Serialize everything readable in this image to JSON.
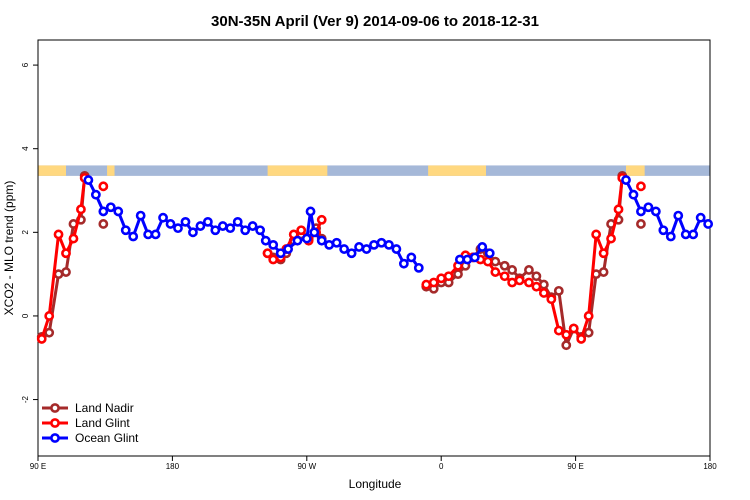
{
  "chart_data": {
    "type": "line",
    "title": "30N-35N April (Ver 9)   2014-09-06 to 2018-12-31",
    "xlabel": "Longitude",
    "ylabel": "XCO2 - MLO trend (ppm)",
    "xlim": [
      0,
      360
    ],
    "ylim": [
      -3.35,
      6.6
    ],
    "x_ticks": [
      {
        "value": 0,
        "label": "90 E"
      },
      {
        "value": 72,
        "label": "180"
      },
      {
        "value": 144,
        "label": "90 W"
      },
      {
        "value": 216,
        "label": "0"
      },
      {
        "value": 288,
        "label": "90 E"
      },
      {
        "value": 360,
        "label": "180"
      }
    ],
    "y_ticks": [
      {
        "value": -2,
        "label": "-2"
      },
      {
        "value": 0,
        "label": "0"
      },
      {
        "value": 2,
        "label": "2"
      },
      {
        "value": 4,
        "label": "4"
      },
      {
        "value": 6,
        "label": "6"
      }
    ],
    "grid": false,
    "legend_position": "bottom-left",
    "band": {
      "y_range": [
        3.35,
        3.6
      ],
      "land_color": "#ffd880",
      "ocean_color": "#a5b8d8",
      "land_spans": [
        [
          0,
          15
        ],
        [
          37,
          41
        ],
        [
          123,
          155
        ],
        [
          209,
          240
        ],
        [
          315,
          325
        ]
      ]
    },
    "series": [
      {
        "name": "Land Nadir",
        "color": "#a52a2a",
        "points": [
          [
            2,
            -0.5
          ],
          [
            6,
            -0.4
          ],
          [
            11,
            1.0
          ],
          [
            15,
            1.05
          ],
          [
            19,
            2.2
          ],
          [
            23,
            2.3
          ],
          [
            25,
            3.35
          ],
          [
            35,
            2.2
          ],
          [
            123,
            1.5
          ],
          [
            126,
            1.4
          ],
          [
            130,
            1.35
          ],
          [
            133,
            1.5
          ],
          [
            137,
            1.8
          ],
          [
            141,
            1.95
          ],
          [
            145,
            1.85
          ],
          [
            149,
            2.1
          ],
          [
            152,
            1.85
          ],
          [
            208,
            0.7
          ],
          [
            212,
            0.65
          ],
          [
            216,
            0.8
          ],
          [
            220,
            0.8
          ],
          [
            225,
            1.0
          ],
          [
            229,
            1.2
          ],
          [
            233,
            1.4
          ],
          [
            237,
            1.6
          ],
          [
            241,
            1.5
          ],
          [
            245,
            1.3
          ],
          [
            250,
            1.2
          ],
          [
            254,
            1.1
          ],
          [
            258,
            0.9
          ],
          [
            263,
            1.1
          ],
          [
            267,
            0.95
          ],
          [
            271,
            0.75
          ],
          [
            275,
            0.45
          ],
          [
            279,
            0.6
          ],
          [
            283,
            -0.7
          ],
          [
            287,
            -0.3
          ],
          [
            291,
            -0.5
          ],
          [
            295,
            -0.4
          ],
          [
            299,
            1.0
          ],
          [
            303,
            1.05
          ],
          [
            307,
            2.2
          ],
          [
            311,
            2.3
          ],
          [
            313,
            3.35
          ],
          [
            323,
            2.2
          ]
        ]
      },
      {
        "name": "Land Glint",
        "color": "#ff0000",
        "points": [
          [
            2,
            -0.55
          ],
          [
            6,
            0.0
          ],
          [
            11,
            1.95
          ],
          [
            15,
            1.5
          ],
          [
            19,
            1.85
          ],
          [
            23,
            2.55
          ],
          [
            25,
            3.3
          ],
          [
            35,
            3.1
          ],
          [
            123,
            1.5
          ],
          [
            126,
            1.35
          ],
          [
            130,
            1.4
          ],
          [
            133,
            1.6
          ],
          [
            137,
            1.95
          ],
          [
            141,
            2.05
          ],
          [
            145,
            1.8
          ],
          [
            149,
            2.0
          ],
          [
            152,
            2.3
          ],
          [
            208,
            0.75
          ],
          [
            212,
            0.8
          ],
          [
            216,
            0.9
          ],
          [
            220,
            0.95
          ],
          [
            225,
            1.2
          ],
          [
            229,
            1.45
          ],
          [
            233,
            1.4
          ],
          [
            237,
            1.35
          ],
          [
            241,
            1.3
          ],
          [
            245,
            1.05
          ],
          [
            250,
            0.95
          ],
          [
            254,
            0.8
          ],
          [
            258,
            0.85
          ],
          [
            263,
            0.8
          ],
          [
            267,
            0.7
          ],
          [
            271,
            0.55
          ],
          [
            275,
            0.4
          ],
          [
            279,
            -0.35
          ],
          [
            283,
            -0.45
          ],
          [
            287,
            -0.3
          ],
          [
            291,
            -0.55
          ],
          [
            295,
            0.0
          ],
          [
            299,
            1.95
          ],
          [
            303,
            1.5
          ],
          [
            307,
            1.85
          ],
          [
            311,
            2.55
          ],
          [
            313,
            3.3
          ],
          [
            323,
            3.1
          ]
        ]
      },
      {
        "name": "Ocean Glint",
        "color": "#0000ff",
        "points": [
          [
            27,
            3.25
          ],
          [
            31,
            2.9
          ],
          [
            35,
            2.5
          ],
          [
            39,
            2.6
          ],
          [
            43,
            2.5
          ],
          [
            47,
            2.05
          ],
          [
            51,
            1.9
          ],
          [
            55,
            2.4
          ],
          [
            59,
            1.95
          ],
          [
            63,
            1.95
          ],
          [
            67,
            2.35
          ],
          [
            71,
            2.2
          ],
          [
            75,
            2.1
          ],
          [
            79,
            2.25
          ],
          [
            83,
            2.0
          ],
          [
            87,
            2.15
          ],
          [
            91,
            2.25
          ],
          [
            95,
            2.05
          ],
          [
            99,
            2.15
          ],
          [
            103,
            2.1
          ],
          [
            107,
            2.25
          ],
          [
            111,
            2.05
          ],
          [
            115,
            2.15
          ],
          [
            119,
            2.05
          ],
          [
            122,
            1.8
          ],
          [
            126,
            1.7
          ],
          [
            130,
            1.5
          ],
          [
            134,
            1.6
          ],
          [
            139,
            1.8
          ],
          [
            144,
            1.85
          ],
          [
            146,
            2.5
          ],
          [
            148,
            2.0
          ],
          [
            152,
            1.8
          ],
          [
            156,
            1.7
          ],
          [
            160,
            1.75
          ],
          [
            164,
            1.6
          ],
          [
            168,
            1.5
          ],
          [
            172,
            1.65
          ],
          [
            176,
            1.6
          ],
          [
            180,
            1.7
          ],
          [
            184,
            1.75
          ],
          [
            188,
            1.7
          ],
          [
            192,
            1.6
          ],
          [
            196,
            1.25
          ],
          [
            200,
            1.4
          ],
          [
            204,
            1.15
          ],
          [
            226,
            1.35
          ],
          [
            230,
            1.35
          ],
          [
            234,
            1.4
          ],
          [
            238,
            1.65
          ],
          [
            242,
            1.5
          ]
        ]
      },
      {
        "name": "Ocean Glint",
        "color": "#0000ff",
        "show_in_legend": false,
        "points": [
          [
            315,
            3.25
          ],
          [
            319,
            2.9
          ],
          [
            323,
            2.5
          ],
          [
            327,
            2.6
          ],
          [
            331,
            2.5
          ],
          [
            335,
            2.05
          ],
          [
            339,
            1.9
          ],
          [
            343,
            2.4
          ],
          [
            347,
            1.95
          ],
          [
            351,
            1.95
          ],
          [
            355,
            2.35
          ],
          [
            359,
            2.2
          ]
        ]
      }
    ]
  }
}
